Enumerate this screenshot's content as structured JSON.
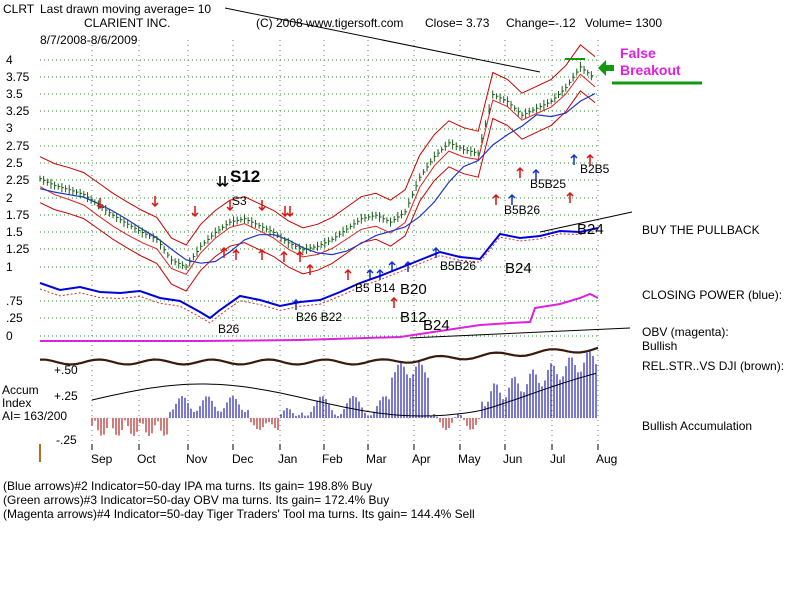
{
  "header": {
    "ticker": "CLRT",
    "last_ma": "Last drawn moving average= 10",
    "company": "CLARIENT INC.",
    "copyright": "(C) 2008 www.tigersoft.com",
    "close": "Close=  3.73",
    "change": "Change=-.12",
    "volume": "Volume= 1300",
    "range": "8/7/2008-8/6/2009"
  },
  "annotations": {
    "s12": "S12",
    "s3": "S3",
    "false_breakout_1": "False",
    "false_breakout_2": "Breakout",
    "buy_pullback": "BUY THE PULLBACK",
    "closing_power": "CLOSING POWER (blue):",
    "obv_1": "OBV (magenta):",
    "obv_2": "Bullish",
    "relstr": "REL.STR..VS DJI (brown):",
    "accum_label_1": "Accum",
    "accum_label_2": "Index",
    "ai": "AI= 163/200",
    "bullish_accum": "Bullish Accumulation",
    "b24_main": "B24",
    "b24_cp": "B24",
    "b20": "B20",
    "b12": "B12",
    "b24_low": "B24",
    "b26": "B26",
    "b26_b22": "B26  B22",
    "b5": "B5",
    "b14": "B14",
    "b5_b26_a": "B5B26",
    "b5_b26_b": "B5B26",
    "b5_b25": "B5B25",
    "b2_b5": "B2B5"
  },
  "footer": [
    "(Blue arrows)#2 Indicator=50-day IPA ma turns. Its gain= 198.8% Buy",
    "(Green arrows)#3 Indicator=50-day OBV ma turns. Its gain= 172.4% Buy",
    "(Magenta arrows)#4 Indicator=50-day Tiger Traders' Tool ma turns. Its gain= 144.4% Sell"
  ],
  "colors": {
    "price_bar": "#1a5c1a",
    "band": "#cc0000",
    "ma_red": "#dd2222",
    "ma_blue": "#2233cc",
    "closing_power": "#0000dd",
    "obv": "#dd22dd",
    "relstr": "#3a1a0a",
    "accum_pos": "#2222bb",
    "accum_neg": "#bb2222",
    "grid": "#2a8a2a",
    "arrow_green": "#119911"
  },
  "chart_data": {
    "type": "line",
    "title": "CLARIENT INC.",
    "x_ticks": [
      "Sep",
      "Oct",
      "Nov",
      "Dec",
      "Jan",
      "Feb",
      "Mar",
      "Apr",
      "May",
      "Jun",
      "Jul",
      "Aug"
    ],
    "y_ticks": [
      "4",
      "3.75",
      "3.5",
      "3.25",
      "3",
      "2.75",
      "2.5",
      "2.25",
      "2",
      "1.75",
      "1.5",
      "1.25",
      "1"
    ],
    "lower_ticks": [
      ".75",
      ".25",
      "0"
    ],
    "accum_ticks": [
      "+.50",
      "+.25",
      "-.25"
    ],
    "ylim": [
      1,
      4
    ],
    "series": [
      {
        "values": [
          2.28,
          2.18,
          2.12,
          2.05,
          1.9,
          1.75,
          1.62,
          1.5,
          1.4,
          1.1,
          1.0,
          1.3,
          1.5,
          1.65,
          1.7,
          1.6,
          1.5,
          1.35,
          1.25,
          1.3,
          1.4,
          1.55,
          1.7,
          1.75,
          1.65,
          1.8,
          2.3,
          2.6,
          2.8,
          2.7,
          2.65,
          3.5,
          3.4,
          3.2,
          3.3,
          3.4,
          3.6,
          3.9,
          3.73
        ]
      }
    ]
  }
}
